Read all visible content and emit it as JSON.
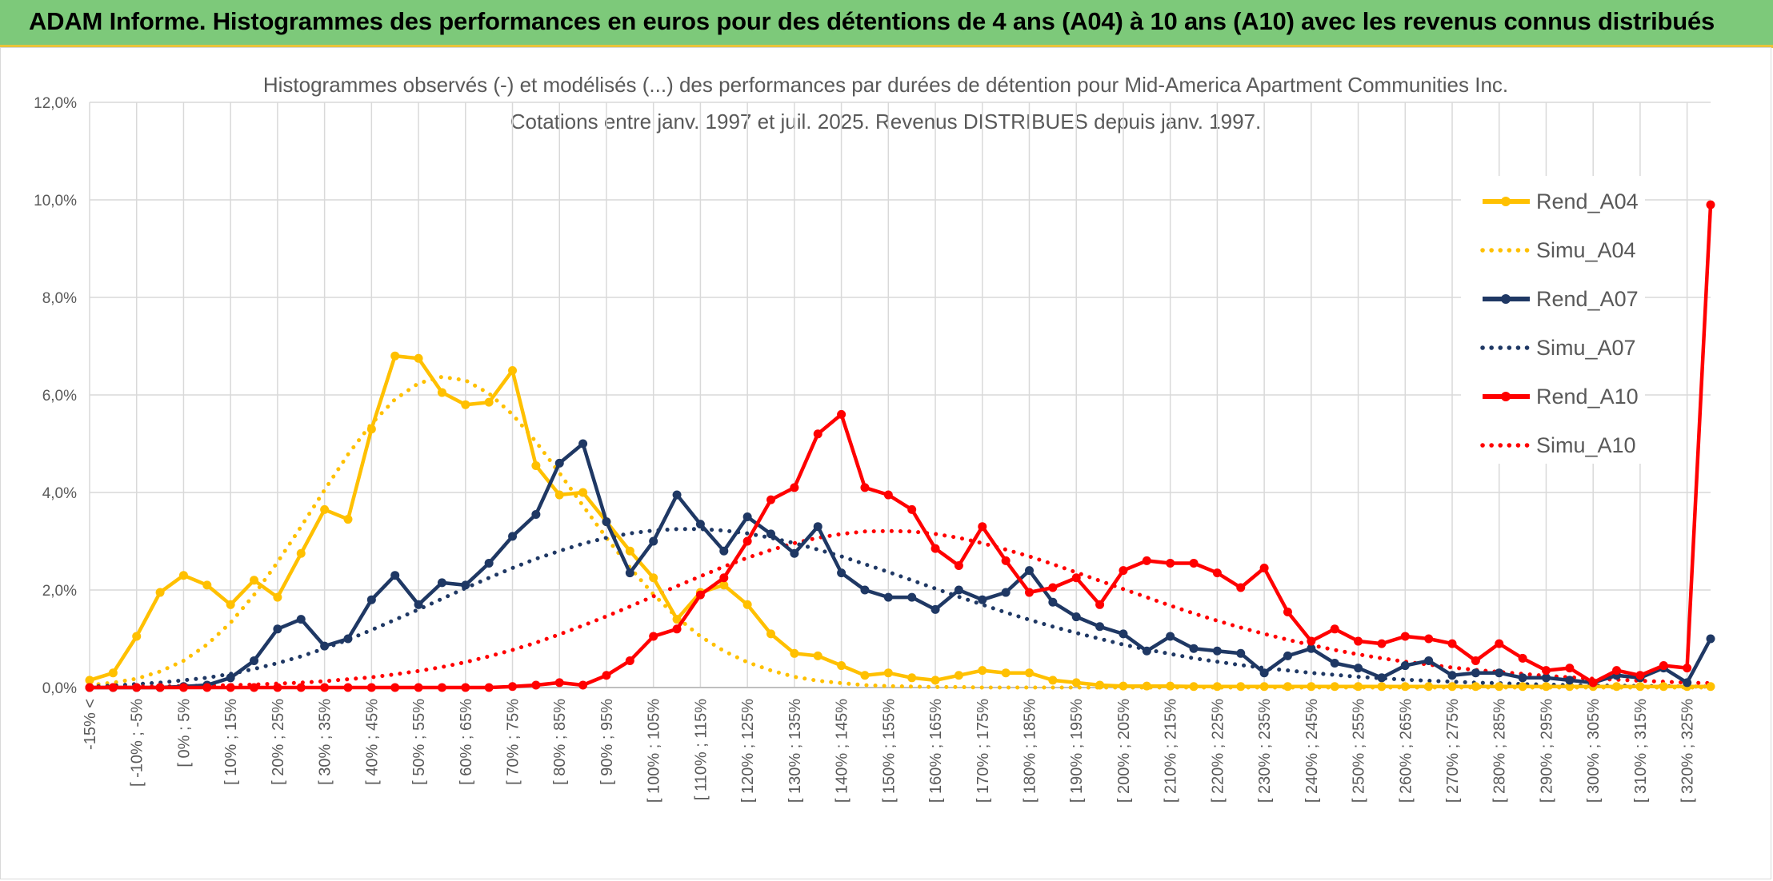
{
  "banner": {
    "title": "ADAM Informe. Histogrammes des performances en euros pour des détentions de 4 ans (A04) à 10 ans (A10) avec les revenus connus distribués"
  },
  "colors": {
    "banner_bg": "#7dc97a",
    "accent": "#e8c33a",
    "A04": "#ffc000",
    "A07": "#1f3864",
    "A10": "#ff0000"
  },
  "chart_data": {
    "type": "line",
    "title": "Histogrammes observés (-) et modélisés (...) des performances par durées de détention pour Mid-America Apartment Communities Inc.",
    "subtitle": "Cotations entre janv. 1997 et juil. 2025. Revenus DISTRIBUES depuis janv. 1997.",
    "ylim": [
      0,
      12
    ],
    "yticks": [
      "0,0%",
      "2,0%",
      "4,0%",
      "6,0%",
      "8,0%",
      "10,0%",
      "12,0%"
    ],
    "grid": true,
    "legend_position": "right",
    "x_labels": [
      "-15% <",
      "[ -10% ; -5%",
      "[ 0% ; 5%",
      "[ 10% ; 15%",
      "[ 20% ; 25%",
      "[ 30% ; 35%",
      "[ 40% ; 45%",
      "[ 50% ; 55%",
      "[ 60% ; 65%",
      "[ 70% ; 75%",
      "[ 80% ; 85%",
      "[ 90% ; 95%",
      "[ 100% ; 105%",
      "[ 110% ; 115%",
      "[ 120% ; 125%",
      "[ 130% ; 135%",
      "[ 140% ; 145%",
      "[ 150% ; 155%",
      "[ 160% ; 165%",
      "[ 170% ; 175%",
      "[ 180% ; 185%",
      "[ 190% ; 195%",
      "[ 200% ; 205%",
      "[ 210% ; 215%",
      "[ 220% ; 225%",
      "[ 230% ; 235%",
      "[ 240% ; 245%",
      "[ 250% ; 255%",
      "[ 260% ; 265%",
      "[ 270% ; 275%",
      "[ 280% ; 285%",
      "[ 290% ; 295%",
      "[ 300% ; 305%",
      "[ 310% ; 315%",
      "[ 320% ; 325%"
    ],
    "series": [
      {
        "name": "Rend_A04",
        "style": "solid",
        "color": "#ffc000",
        "values": [
          0.15,
          0.3,
          1.05,
          1.95,
          2.3,
          2.1,
          1.7,
          2.2,
          1.85,
          2.75,
          3.65,
          3.45,
          5.3,
          6.8,
          6.75,
          6.05,
          5.8,
          5.85,
          6.5,
          4.55,
          3.95,
          4.0,
          3.4,
          2.8,
          2.25,
          1.4,
          1.95,
          2.1,
          1.7,
          1.1,
          0.7,
          0.65,
          0.45,
          0.25,
          0.3,
          0.2,
          0.15,
          0.25,
          0.35,
          0.3,
          0.3,
          0.15,
          0.1,
          0.05,
          0.03,
          0.03,
          0.03,
          0.02,
          0.02,
          0.02,
          0.02,
          0.02,
          0.02,
          0.02,
          0.02,
          0.02,
          0.02,
          0.02,
          0.02,
          0.02,
          0.02,
          0.02,
          0.02,
          0.02,
          0.02,
          0.02,
          0.02,
          0.02,
          0.02,
          0.02
        ]
      },
      {
        "name": "Simu_A04",
        "style": "dotted",
        "color": "#ffc000",
        "values": [
          0.05,
          0.1,
          0.18,
          0.33,
          0.55,
          0.88,
          1.33,
          1.9,
          2.57,
          3.3,
          4.05,
          4.78,
          5.41,
          5.91,
          6.24,
          6.37,
          6.3,
          6.03,
          5.6,
          5.04,
          4.4,
          3.73,
          3.07,
          2.46,
          1.91,
          1.44,
          1.05,
          0.75,
          0.52,
          0.35,
          0.22,
          0.14,
          0.09,
          0.05,
          0.03,
          0.02,
          0.01,
          0.01,
          0,
          0,
          0,
          0,
          0,
          0,
          0,
          0,
          0,
          0,
          0,
          0,
          0,
          0,
          0,
          0,
          0,
          0,
          0,
          0,
          0,
          0,
          0,
          0,
          0,
          0,
          0,
          0,
          0,
          0,
          0,
          0
        ]
      },
      {
        "name": "Rend_A07",
        "style": "solid",
        "color": "#1f3864",
        "values": [
          0,
          0,
          0,
          0,
          0.02,
          0.05,
          0.2,
          0.55,
          1.2,
          1.4,
          0.85,
          1.0,
          1.8,
          2.3,
          1.7,
          2.15,
          2.1,
          2.55,
          3.1,
          3.55,
          4.6,
          5.0,
          3.4,
          2.35,
          3.0,
          3.95,
          3.35,
          2.8,
          3.5,
          3.15,
          2.75,
          3.3,
          2.35,
          2.0,
          1.85,
          1.85,
          1.6,
          2.0,
          1.8,
          1.95,
          2.4,
          1.75,
          1.45,
          1.25,
          1.1,
          0.75,
          1.05,
          0.8,
          0.75,
          0.7,
          0.3,
          0.65,
          0.8,
          0.5,
          0.4,
          0.2,
          0.45,
          0.55,
          0.25,
          0.3,
          0.3,
          0.2,
          0.2,
          0.15,
          0.1,
          0.25,
          0.2,
          0.4,
          0.1,
          1.0
        ]
      },
      {
        "name": "Simu_A07",
        "style": "dotted",
        "color": "#1f3864",
        "values": [
          0.02,
          0.04,
          0.07,
          0.1,
          0.15,
          0.2,
          0.28,
          0.38,
          0.5,
          0.64,
          0.8,
          0.98,
          1.18,
          1.39,
          1.6,
          1.82,
          2.04,
          2.25,
          2.45,
          2.64,
          2.8,
          2.95,
          3.07,
          3.16,
          3.22,
          3.25,
          3.25,
          3.22,
          3.16,
          3.07,
          2.96,
          2.83,
          2.69,
          2.53,
          2.37,
          2.2,
          2.03,
          1.86,
          1.7,
          1.54,
          1.39,
          1.25,
          1.12,
          1.0,
          0.88,
          0.78,
          0.69,
          0.6,
          0.53,
          0.46,
          0.4,
          0.35,
          0.3,
          0.26,
          0.22,
          0.19,
          0.16,
          0.14,
          0.12,
          0.1,
          0.09,
          0.07,
          0.06,
          0.05,
          0.04,
          0.04,
          0.03,
          0.03,
          0.02,
          0.02
        ]
      },
      {
        "name": "Rend_A10",
        "style": "solid",
        "color": "#ff0000",
        "values": [
          0,
          0,
          0,
          0,
          0,
          0,
          0,
          0,
          0,
          0,
          0,
          0,
          0,
          0,
          0,
          0,
          0,
          0,
          0.02,
          0.05,
          0.1,
          0.05,
          0.25,
          0.55,
          1.05,
          1.2,
          1.9,
          2.25,
          3.0,
          3.85,
          4.1,
          5.2,
          5.6,
          4.1,
          3.95,
          3.65,
          2.85,
          2.5,
          3.3,
          2.6,
          1.95,
          2.05,
          2.25,
          1.7,
          2.4,
          2.6,
          2.55,
          2.55,
          2.35,
          2.05,
          2.45,
          1.55,
          0.95,
          1.2,
          0.95,
          0.9,
          1.05,
          1.0,
          0.9,
          0.55,
          0.9,
          0.6,
          0.35,
          0.4,
          0.1,
          0.35,
          0.25,
          0.45,
          0.4,
          9.9
        ]
      },
      {
        "name": "Simu_A10",
        "style": "dotted",
        "color": "#ff0000",
        "values": [
          0.01,
          0.01,
          0.02,
          0.02,
          0.03,
          0.04,
          0.05,
          0.06,
          0.08,
          0.1,
          0.13,
          0.17,
          0.21,
          0.27,
          0.34,
          0.42,
          0.52,
          0.64,
          0.77,
          0.92,
          1.09,
          1.27,
          1.46,
          1.66,
          1.87,
          2.08,
          2.28,
          2.48,
          2.66,
          2.82,
          2.96,
          3.07,
          3.15,
          3.2,
          3.21,
          3.2,
          3.15,
          3.07,
          2.96,
          2.83,
          2.69,
          2.53,
          2.36,
          2.19,
          2.02,
          1.85,
          1.68,
          1.52,
          1.37,
          1.23,
          1.1,
          0.98,
          0.87,
          0.77,
          0.68,
          0.6,
          0.53,
          0.47,
          0.41,
          0.36,
          0.32,
          0.28,
          0.24,
          0.21,
          0.18,
          0.16,
          0.14,
          0.12,
          0.1,
          0.09
        ]
      }
    ]
  }
}
